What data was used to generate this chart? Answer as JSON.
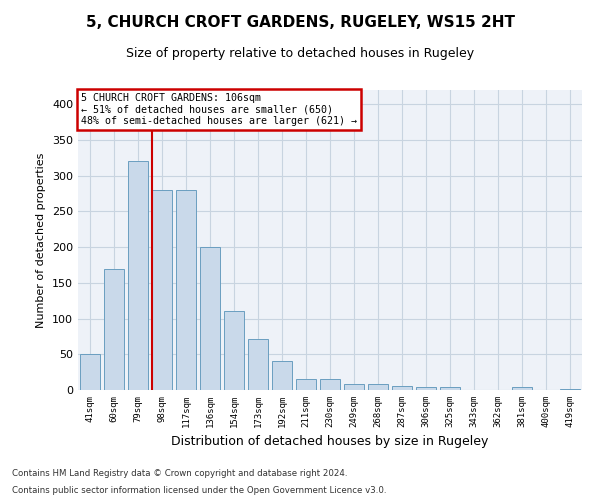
{
  "title": "5, CHURCH CROFT GARDENS, RUGELEY, WS15 2HT",
  "subtitle": "Size of property relative to detached houses in Rugeley",
  "xlabel": "Distribution of detached houses by size in Rugeley",
  "ylabel": "Number of detached properties",
  "categories": [
    "41sqm",
    "60sqm",
    "79sqm",
    "98sqm",
    "117sqm",
    "136sqm",
    "154sqm",
    "173sqm",
    "192sqm",
    "211sqm",
    "230sqm",
    "249sqm",
    "268sqm",
    "287sqm",
    "306sqm",
    "325sqm",
    "343sqm",
    "362sqm",
    "381sqm",
    "400sqm",
    "419sqm"
  ],
  "values": [
    50,
    170,
    320,
    280,
    280,
    200,
    110,
    72,
    40,
    15,
    15,
    9,
    9,
    5,
    4,
    4,
    0,
    0,
    4,
    0,
    2
  ],
  "bar_color": "#c9d9ea",
  "bar_edge_color": "#6a9ec0",
  "marker_label": "5 CHURCH CROFT GARDENS: 106sqm",
  "annotation_line1": "← 51% of detached houses are smaller (650)",
  "annotation_line2": "48% of semi-detached houses are larger (621) →",
  "annotation_box_color": "#ffffff",
  "annotation_box_edge": "#cc0000",
  "vline_color": "#cc0000",
  "grid_color": "#c8d4e0",
  "background_color": "#eef2f8",
  "footer1": "Contains HM Land Registry data © Crown copyright and database right 2024.",
  "footer2": "Contains public sector information licensed under the Open Government Licence v3.0.",
  "ylim": [
    0,
    420
  ],
  "yticks": [
    0,
    50,
    100,
    150,
    200,
    250,
    300,
    350,
    400
  ],
  "vline_pos": 2.57
}
